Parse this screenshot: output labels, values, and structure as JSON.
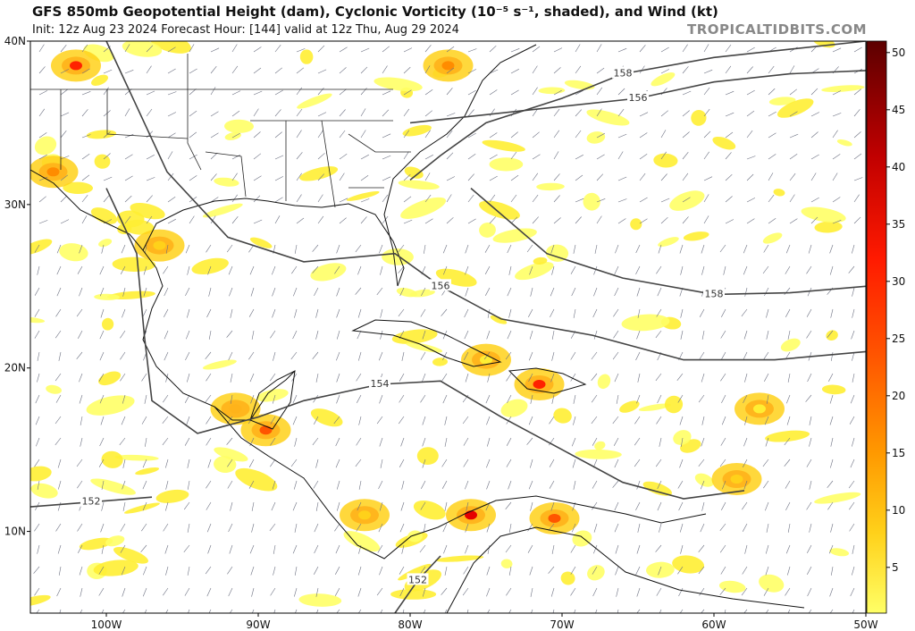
{
  "header": {
    "title": "GFS 850mb Geopotential Height (dam), Cyclonic Vorticity (10⁻⁵ s⁻¹, shaded), and Wind (kt)",
    "subtitle": "Init: 12z Aug 23 2024   Forecast Hour: [144]   valid at 12z Thu, Aug 29 2024",
    "brand": "TROPICALTIDBITS.COM"
  },
  "chart_data": {
    "type": "map",
    "extent": {
      "lon": [
        -105,
        -50
      ],
      "lat": [
        5,
        40
      ]
    },
    "lon_ticks": [
      {
        "lon": -100,
        "label": "100W"
      },
      {
        "lon": -90,
        "label": "90W"
      },
      {
        "lon": -80,
        "label": "80W"
      },
      {
        "lon": -70,
        "label": "70W"
      },
      {
        "lon": -60,
        "label": "60W"
      },
      {
        "lon": -50,
        "label": "50W"
      }
    ],
    "lat_ticks": [
      {
        "lat": 40,
        "label": "40N"
      },
      {
        "lat": 30,
        "label": "30N"
      },
      {
        "lat": 20,
        "label": "20N"
      },
      {
        "lat": 10,
        "label": "10N"
      }
    ],
    "colorbar": {
      "ticks": [
        5,
        10,
        15,
        20,
        25,
        30,
        35,
        40,
        45,
        50
      ],
      "range": [
        1,
        51
      ],
      "colors": [
        "#ffff66",
        "#ffee33",
        "#ffd11a",
        "#ffb31a",
        "#ff8c00",
        "#ff5500",
        "#ff2200",
        "#e60000",
        "#b30000",
        "#800000",
        "#5c0000"
      ]
    },
    "contours": [
      {
        "label": "152",
        "points": [
          [
            -105,
            11.5
          ],
          [
            -101,
            11.8
          ],
          [
            -97,
            12.1
          ]
        ]
      },
      {
        "label": "152",
        "points": [
          [
            -81,
            5
          ],
          [
            -79.5,
            7
          ],
          [
            -78,
            8.5
          ]
        ]
      },
      {
        "label": "154",
        "points": [
          [
            -100,
            31
          ],
          [
            -98,
            27
          ],
          [
            -97.5,
            22
          ],
          [
            -97,
            18
          ],
          [
            -94,
            16
          ],
          [
            -90,
            17
          ],
          [
            -87,
            18
          ],
          [
            -82,
            19
          ],
          [
            -78,
            19.2
          ],
          [
            -74,
            17
          ],
          [
            -70,
            15
          ],
          [
            -66,
            13
          ],
          [
            -62,
            12
          ],
          [
            -58,
            12.5
          ]
        ]
      },
      {
        "label": "156",
        "points": [
          [
            -100,
            40
          ],
          [
            -98,
            36
          ],
          [
            -96,
            32
          ],
          [
            -92,
            28
          ],
          [
            -87,
            26.5
          ],
          [
            -81,
            27
          ],
          [
            -78,
            25
          ],
          [
            -74,
            23
          ],
          [
            -68,
            22
          ],
          [
            -62,
            20.5
          ],
          [
            -56,
            20.5
          ],
          [
            -50,
            21
          ]
        ]
      },
      {
        "label": "158",
        "points": [
          [
            -80,
            31.5
          ],
          [
            -78,
            33
          ],
          [
            -75,
            35
          ],
          [
            -70,
            36.5
          ],
          [
            -66,
            38
          ],
          [
            -60,
            39
          ],
          [
            -55,
            39.5
          ],
          [
            -50,
            40
          ]
        ]
      },
      {
        "label": "156",
        "points": [
          [
            -80,
            35
          ],
          [
            -75,
            35.5
          ],
          [
            -70,
            36
          ],
          [
            -65,
            36.5
          ],
          [
            -60,
            37.5
          ],
          [
            -55,
            38
          ],
          [
            -50,
            38.2
          ]
        ]
      },
      {
        "label": "158",
        "points": [
          [
            -76,
            31
          ],
          [
            -71,
            27
          ],
          [
            -66,
            25.5
          ],
          [
            -60,
            24.5
          ],
          [
            -55,
            24.6
          ],
          [
            -50,
            25
          ]
        ]
      }
    ],
    "vorticity_blobs": [
      {
        "lon": -102,
        "lat": 38.5,
        "value": 30
      },
      {
        "lon": -77.5,
        "lat": 38.5,
        "value": 22
      },
      {
        "lon": -96.5,
        "lat": 27.5,
        "value": 14
      },
      {
        "lon": -89.5,
        "lat": 16.2,
        "value": 25
      },
      {
        "lon": -71.5,
        "lat": 19,
        "value": 30
      },
      {
        "lon": -76,
        "lat": 11,
        "value": 35
      },
      {
        "lon": -70.5,
        "lat": 10.8,
        "value": 28
      },
      {
        "lon": -103.5,
        "lat": 32,
        "value": 20
      },
      {
        "lon": -57,
        "lat": 17.5,
        "value": 10
      },
      {
        "lon": -58.5,
        "lat": 13.2,
        "value": 12
      },
      {
        "lon": -91.5,
        "lat": 17.5,
        "value": 15
      },
      {
        "lon": -75,
        "lat": 20.5,
        "value": 10
      },
      {
        "lon": -83,
        "lat": 11,
        "value": 12
      }
    ]
  }
}
